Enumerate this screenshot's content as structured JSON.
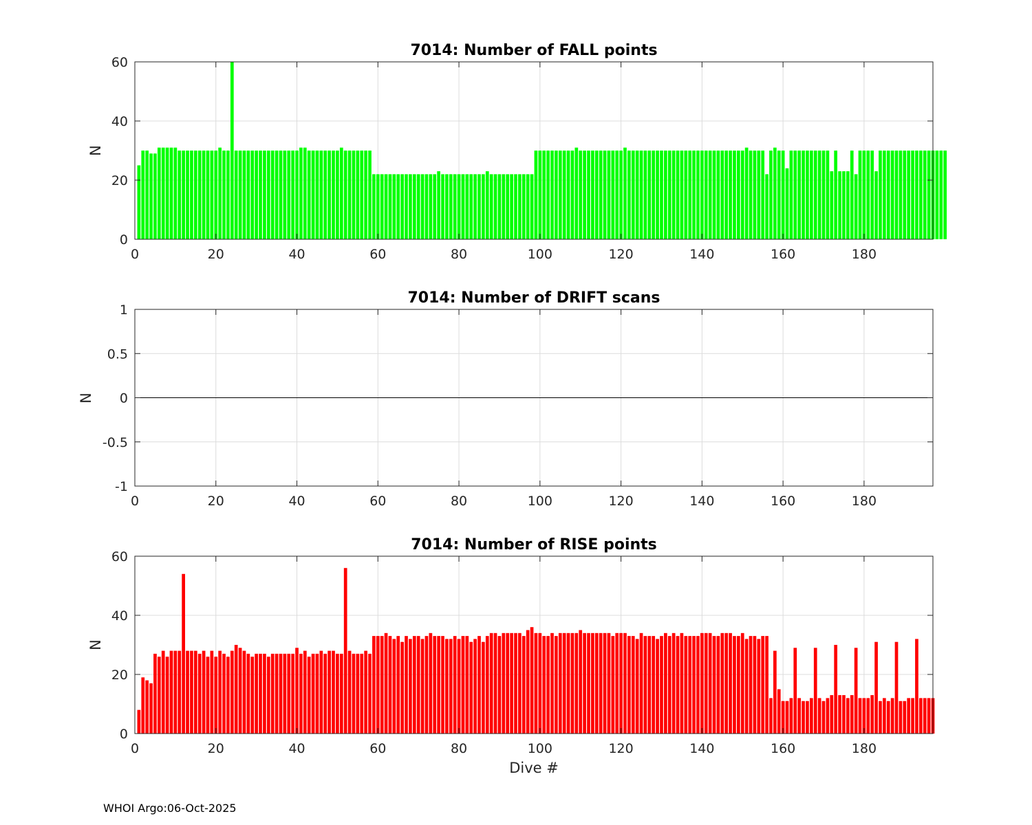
{
  "footer": "WHOI Argo:06-Oct-2025",
  "chart_data": [
    {
      "type": "bar",
      "title": "7014: Number of FALL points",
      "xlabel": "",
      "ylabel": "N",
      "color": "#00ff00",
      "xlim": [
        0,
        197
      ],
      "ylim": [
        0,
        60
      ],
      "xticks": [
        0,
        20,
        40,
        60,
        80,
        100,
        120,
        140,
        160,
        180
      ],
      "yticks": [
        0,
        20,
        40,
        60
      ],
      "ytick_labels": [
        "0",
        "20",
        "40",
        "60"
      ],
      "grid": true,
      "x_start": 1,
      "values": [
        25,
        30,
        30,
        29,
        29,
        31,
        31,
        31,
        31,
        31,
        30,
        30,
        30,
        30,
        30,
        30,
        30,
        30,
        30,
        30,
        31,
        30,
        30,
        60,
        30,
        30,
        30,
        30,
        30,
        30,
        30,
        30,
        30,
        30,
        30,
        30,
        30,
        30,
        30,
        30,
        31,
        31,
        30,
        30,
        30,
        30,
        30,
        30,
        30,
        30,
        31,
        30,
        30,
        30,
        30,
        30,
        30,
        30,
        22,
        22,
        22,
        22,
        22,
        22,
        22,
        22,
        22,
        22,
        22,
        22,
        22,
        22,
        22,
        22,
        23,
        22,
        22,
        22,
        22,
        22,
        22,
        22,
        22,
        22,
        22,
        22,
        23,
        22,
        22,
        22,
        22,
        22,
        22,
        22,
        22,
        22,
        22,
        22,
        30,
        30,
        30,
        30,
        30,
        30,
        30,
        30,
        30,
        30,
        31,
        30,
        30,
        30,
        30,
        30,
        30,
        30,
        30,
        30,
        30,
        30,
        31,
        30,
        30,
        30,
        30,
        30,
        30,
        30,
        30,
        30,
        30,
        30,
        30,
        30,
        30,
        30,
        30,
        30,
        30,
        30,
        30,
        30,
        30,
        30,
        30,
        30,
        30,
        30,
        30,
        30,
        31,
        30,
        30,
        30,
        30,
        22,
        30,
        31,
        30,
        30,
        24,
        30,
        30,
        30,
        30,
        30,
        30,
        30,
        30,
        30,
        30,
        23,
        30,
        23,
        23,
        23,
        30,
        22,
        30,
        30,
        30,
        30,
        23,
        30,
        30,
        30,
        30,
        30,
        30,
        30,
        30,
        30,
        30,
        30,
        30,
        30,
        30,
        30,
        30,
        30
      ]
    },
    {
      "type": "bar",
      "title": "7014: Number of DRIFT scans",
      "xlabel": "",
      "ylabel": "N",
      "color": "#000000",
      "xlim": [
        0,
        197
      ],
      "ylim": [
        -1,
        1
      ],
      "xticks": [
        0,
        20,
        40,
        60,
        80,
        100,
        120,
        140,
        160,
        180
      ],
      "yticks": [
        -1,
        -0.5,
        0,
        0.5,
        1
      ],
      "ytick_labels": [
        "-1",
        "-0.5",
        "0",
        "0.5",
        "1"
      ],
      "grid": true,
      "x_start": 1,
      "values": []
    },
    {
      "type": "bar",
      "title": "7014: Number of RISE points",
      "xlabel": "Dive #",
      "ylabel": "N",
      "color": "#ff0000",
      "xlim": [
        0,
        197
      ],
      "ylim": [
        0,
        60
      ],
      "xticks": [
        0,
        20,
        40,
        60,
        80,
        100,
        120,
        140,
        160,
        180
      ],
      "yticks": [
        0,
        20,
        40,
        60
      ],
      "ytick_labels": [
        "0",
        "20",
        "40",
        "60"
      ],
      "grid": true,
      "x_start": 1,
      "values": [
        8,
        19,
        18,
        17,
        27,
        26,
        28,
        26,
        28,
        28,
        28,
        54,
        28,
        28,
        28,
        27,
        28,
        26,
        28,
        26,
        28,
        27,
        26,
        28,
        30,
        29,
        28,
        27,
        26,
        27,
        27,
        27,
        26,
        27,
        27,
        27,
        27,
        27,
        27,
        29,
        27,
        28,
        26,
        27,
        27,
        28,
        27,
        28,
        28,
        27,
        27,
        56,
        28,
        27,
        27,
        27,
        28,
        27,
        33,
        33,
        33,
        34,
        33,
        32,
        33,
        31,
        33,
        32,
        33,
        33,
        32,
        33,
        34,
        33,
        33,
        33,
        32,
        32,
        33,
        32,
        33,
        33,
        31,
        32,
        33,
        31,
        33,
        34,
        34,
        33,
        34,
        34,
        34,
        34,
        34,
        33,
        35,
        36,
        34,
        34,
        33,
        33,
        34,
        33,
        34,
        34,
        34,
        34,
        34,
        35,
        34,
        34,
        34,
        34,
        34,
        34,
        34,
        33,
        34,
        34,
        34,
        33,
        33,
        32,
        34,
        33,
        33,
        33,
        32,
        33,
        34,
        33,
        34,
        33,
        34,
        33,
        33,
        33,
        33,
        34,
        34,
        34,
        33,
        33,
        34,
        34,
        34,
        33,
        33,
        34,
        32,
        33,
        33,
        32,
        33,
        33,
        12,
        28,
        15,
        11,
        11,
        12,
        29,
        12,
        11,
        11,
        12,
        29,
        12,
        11,
        12,
        13,
        30,
        13,
        13,
        12,
        13,
        29,
        12,
        12,
        12,
        13,
        31,
        11,
        12,
        11,
        12,
        31,
        11,
        11,
        12,
        12,
        32,
        12,
        12,
        12,
        12
      ]
    }
  ]
}
